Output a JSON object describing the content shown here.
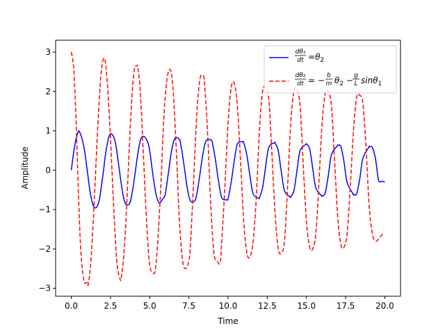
{
  "chart_data": {
    "type": "line",
    "title": "",
    "xlabel": "Time",
    "ylabel": "Amplitude",
    "xlim": [
      -1.0,
      21.0
    ],
    "ylim": [
      -3.2,
      3.3
    ],
    "xticks": [
      0.0,
      2.5,
      5.0,
      7.5,
      10.0,
      12.5,
      15.0,
      17.5,
      20.0
    ],
    "xtick_labels": [
      "0.0",
      "2.5",
      "5.0",
      "7.5",
      "10.0",
      "12.5",
      "15.0",
      "17.5",
      "20.0"
    ],
    "yticks": [
      -3,
      -2,
      -1,
      0,
      1,
      2,
      3
    ],
    "ytick_labels": [
      "−3",
      "−2",
      "−1",
      "0",
      "1",
      "2",
      "3"
    ],
    "grid": false,
    "legend_position": "top-right",
    "series": [
      {
        "name": "dθ1/dt = θ2",
        "color": "#0000ff",
        "style": "solid",
        "x": [
          0.0,
          0.2,
          0.4,
          0.53,
          0.8,
          1.0,
          1.2,
          1.4,
          1.62,
          1.8,
          2.0,
          2.2,
          2.4,
          2.58,
          2.8,
          3.0,
          3.2,
          3.4,
          3.64,
          3.8,
          4.0,
          4.2,
          4.4,
          4.6,
          4.85,
          5.0,
          5.2,
          5.4,
          5.6,
          5.85,
          6.0,
          6.2,
          6.4,
          6.6,
          6.87,
          7.0,
          7.2,
          7.4,
          7.6,
          7.87,
          8.0,
          8.2,
          8.4,
          8.6,
          8.89,
          9.0,
          9.2,
          9.4,
          9.6,
          9.91,
          10.0,
          10.2,
          10.4,
          10.6,
          10.92,
          11.0,
          11.2,
          11.4,
          11.6,
          11.94,
          12.0,
          12.2,
          12.4,
          12.6,
          12.96,
          13.0,
          13.2,
          13.4,
          13.6,
          13.96,
          14.0,
          14.2,
          14.4,
          14.6,
          14.98,
          15.0,
          15.2,
          15.4,
          15.6,
          15.98,
          16.0,
          16.2,
          16.4,
          16.6,
          16.98,
          17.0,
          17.2,
          17.4,
          17.6,
          17.99,
          18.0,
          18.2,
          18.4,
          18.6,
          18.99,
          19.0,
          19.2,
          19.4,
          19.6,
          19.8,
          20.0
        ],
        "y": [
          0.0,
          0.58,
          0.93,
          0.97,
          0.6,
          0.05,
          -0.55,
          -0.9,
          -0.94,
          -0.72,
          -0.18,
          0.45,
          0.85,
          0.92,
          0.72,
          0.2,
          -0.38,
          -0.8,
          -0.88,
          -0.74,
          -0.28,
          0.3,
          0.75,
          0.86,
          0.74,
          0.5,
          -0.1,
          -0.6,
          -0.83,
          -0.72,
          -0.6,
          -0.05,
          0.5,
          0.8,
          0.8,
          0.62,
          0.1,
          -0.46,
          -0.78,
          -0.78,
          -0.62,
          -0.12,
          0.42,
          0.75,
          0.77,
          0.7,
          0.25,
          -0.3,
          -0.7,
          -0.75,
          -0.72,
          -0.3,
          0.25,
          0.67,
          0.72,
          0.7,
          0.38,
          -0.15,
          -0.6,
          -0.71,
          -0.7,
          -0.45,
          0.1,
          0.58,
          0.7,
          0.69,
          0.5,
          -0.05,
          -0.52,
          -0.68,
          -0.67,
          -0.52,
          0.0,
          0.5,
          0.66,
          0.66,
          0.55,
          0.05,
          -0.45,
          -0.65,
          -0.65,
          -0.58,
          -0.12,
          0.4,
          0.62,
          0.63,
          0.6,
          0.2,
          -0.32,
          -0.61,
          -0.61,
          -0.6,
          -0.22,
          0.3,
          0.59,
          0.59,
          0.58,
          0.3,
          -0.25,
          -0.28,
          -0.3
        ]
      },
      {
        "name": "dθ2/dt = −(b/m)θ2 − (g/L)sinθ1",
        "color": "#ff0000",
        "style": "dashed",
        "x": [
          0.0,
          0.15,
          0.3,
          0.45,
          0.6,
          0.8,
          1.0,
          1.08,
          1.25,
          1.45,
          1.65,
          1.85,
          2.0,
          2.15,
          2.3,
          2.5,
          2.7,
          2.9,
          3.1,
          3.2,
          3.4,
          3.6,
          3.8,
          4.0,
          4.2,
          4.25,
          4.4,
          4.6,
          4.8,
          5.0,
          5.2,
          5.35,
          5.5,
          5.7,
          5.9,
          6.1,
          6.32,
          6.5,
          6.7,
          6.9,
          7.1,
          7.3,
          7.5,
          7.6,
          7.8,
          8.0,
          8.2,
          8.4,
          8.5,
          8.7,
          8.9,
          9.1,
          9.3,
          9.5,
          9.6,
          9.8,
          10.0,
          10.2,
          10.4,
          10.6,
          10.8,
          11.0,
          11.2,
          11.4,
          11.6,
          11.8,
          12.0,
          12.2,
          12.4,
          12.6,
          12.8,
          13.0,
          13.2,
          13.4,
          13.6,
          13.8,
          14.0,
          14.2,
          14.4,
          14.6,
          14.8,
          15.0,
          15.2,
          15.4,
          15.6,
          15.8,
          16.0,
          16.2,
          16.4,
          16.6,
          16.8,
          17.0,
          17.2,
          17.4,
          17.6,
          17.8,
          18.0,
          18.2,
          18.4,
          18.6,
          18.8,
          19.0,
          19.2,
          19.4,
          19.6,
          19.8,
          20.0
        ],
        "y": [
          3.0,
          2.6,
          1.3,
          -0.5,
          -2.0,
          -2.8,
          -2.85,
          -2.9,
          -2.3,
          -0.9,
          0.8,
          2.2,
          2.75,
          2.8,
          2.2,
          0.8,
          -0.9,
          -2.3,
          -2.75,
          -2.7,
          -1.9,
          -0.3,
          1.4,
          2.5,
          2.65,
          2.6,
          2.0,
          0.4,
          -1.3,
          -2.4,
          -2.6,
          -2.55,
          -1.9,
          -0.5,
          1.3,
          2.3,
          2.55,
          2.0,
          0.5,
          -1.3,
          -2.3,
          -2.5,
          -2.3,
          -1.9,
          -0.3,
          1.4,
          2.3,
          2.4,
          2.2,
          0.9,
          -0.9,
          -2.1,
          -2.3,
          -2.35,
          -1.8,
          -0.4,
          1.2,
          2.1,
          2.2,
          1.6,
          0.2,
          -1.3,
          -2.1,
          -2.2,
          -1.8,
          -0.7,
          1.0,
          2.0,
          2.1,
          1.8,
          0.4,
          -1.1,
          -2.0,
          -2.1,
          -1.8,
          -0.4,
          1.2,
          2.0,
          2.05,
          1.6,
          0.1,
          -1.3,
          -1.95,
          -2.0,
          -1.6,
          -0.3,
          1.2,
          1.95,
          2.0,
          1.6,
          0.2,
          -1.2,
          -1.9,
          -1.95,
          -1.6,
          -0.4,
          1.0,
          1.85,
          1.9,
          1.7,
          0.6,
          -0.9,
          -1.6,
          -1.8,
          -1.75,
          -1.65,
          -1.6
        ]
      }
    ]
  }
}
